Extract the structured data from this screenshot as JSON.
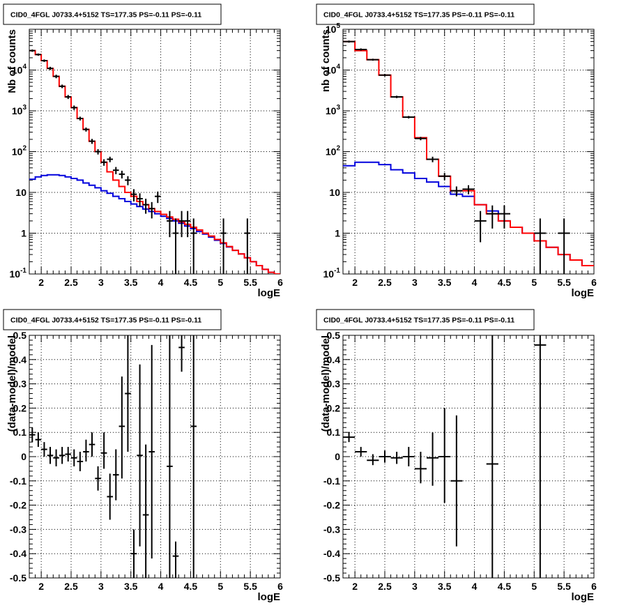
{
  "chart_data": [
    {
      "type": "line",
      "title": "CID0_4FGL J0733.4+5152 TS=177.35 PS=-0.11 PS=-0.11",
      "xlabel": "logE",
      "ylabel": "Nb of counts",
      "xlim": [
        1.8,
        6
      ],
      "ylim": [
        0.1,
        100000
      ],
      "yscale": "log",
      "grid": true,
      "x_ticks": [
        "2",
        "2.5",
        "3",
        "3.5",
        "4",
        "4.5",
        "5",
        "5.5",
        "6"
      ],
      "y_ticks": [
        "10^{-1}",
        "1",
        "10",
        "10^{2}",
        "10^{3}",
        "10^{4}"
      ],
      "series": [
        {
          "color": "#ff0000",
          "edges": [
            1.8,
            1.9,
            2.0,
            2.1,
            2.2,
            2.3,
            2.4,
            2.5,
            2.6,
            2.7,
            2.8,
            2.9,
            3.0,
            3.1,
            3.2,
            3.3,
            3.4,
            3.5,
            3.6,
            3.7,
            3.8,
            3.9,
            4.0,
            4.1,
            4.2,
            4.3,
            4.4,
            4.5,
            4.6,
            4.7,
            4.8,
            4.9,
            5.0,
            5.1,
            5.2,
            5.3,
            5.4,
            5.5,
            5.6,
            5.7,
            5.8,
            5.9,
            6.0
          ],
          "values": [
            30000,
            24000,
            17000,
            11000,
            7000,
            4000,
            2200,
            1200,
            650,
            350,
            180,
            100,
            55,
            32,
            20,
            14,
            10,
            8,
            6,
            5,
            4,
            3.4,
            2.9,
            2.5,
            2.2,
            1.9,
            1.65,
            1.4,
            1.2,
            1.0,
            0.85,
            0.7,
            0.58,
            0.47,
            0.38,
            0.31,
            0.25,
            0.2,
            0.16,
            0.13,
            0.11,
            0.1
          ]
        },
        {
          "color": "#0000dd",
          "edges": [
            1.8,
            1.9,
            2.0,
            2.1,
            2.2,
            2.3,
            2.4,
            2.5,
            2.6,
            2.7,
            2.8,
            2.9,
            3.0,
            3.1,
            3.2,
            3.3,
            3.4,
            3.5,
            3.6,
            3.7,
            3.8,
            3.9,
            4.0,
            4.1,
            4.2,
            4.3,
            4.4,
            4.5,
            4.6,
            4.7,
            4.8,
            4.9,
            5.0,
            5.1,
            5.2,
            5.3,
            5.4,
            5.5,
            5.6,
            5.7,
            5.8,
            5.9,
            6.0
          ],
          "values": [
            21,
            24,
            26,
            27,
            27,
            26,
            24,
            22,
            20,
            17,
            15,
            13,
            11,
            9.5,
            8,
            7,
            6,
            5.2,
            4.5,
            3.9,
            3.4,
            3.0,
            2.6,
            2.3,
            2.0,
            1.75,
            1.5,
            1.3,
            1.1,
            0.95,
            0.8,
            0.67,
            0.56,
            0.46,
            0.38,
            0.31,
            0.25,
            0.2,
            0.16,
            0.13,
            0.11,
            0.1
          ]
        }
      ],
      "points": [
        {
          "x": 1.85,
          "y": 30000,
          "lo": 28000,
          "hi": 32000,
          "dx": 0.05
        },
        {
          "x": 1.95,
          "y": 24000,
          "lo": 22500,
          "hi": 25500,
          "dx": 0.05
        },
        {
          "x": 2.05,
          "y": 17000,
          "lo": 15800,
          "hi": 18200,
          "dx": 0.05
        },
        {
          "x": 2.15,
          "y": 11000,
          "lo": 10000,
          "hi": 12000,
          "dx": 0.05
        },
        {
          "x": 2.25,
          "y": 7000,
          "lo": 6300,
          "hi": 7700,
          "dx": 0.05
        },
        {
          "x": 2.35,
          "y": 4000,
          "lo": 3600,
          "hi": 4400,
          "dx": 0.05
        },
        {
          "x": 2.45,
          "y": 2200,
          "lo": 1950,
          "hi": 2450,
          "dx": 0.05
        },
        {
          "x": 2.55,
          "y": 1200,
          "lo": 1050,
          "hi": 1350,
          "dx": 0.05
        },
        {
          "x": 2.65,
          "y": 650,
          "lo": 580,
          "hi": 720,
          "dx": 0.05
        },
        {
          "x": 2.75,
          "y": 350,
          "lo": 310,
          "hi": 390,
          "dx": 0.05
        },
        {
          "x": 2.85,
          "y": 180,
          "lo": 155,
          "hi": 205,
          "dx": 0.05
        },
        {
          "x": 2.95,
          "y": 100,
          "lo": 85,
          "hi": 115,
          "dx": 0.05
        },
        {
          "x": 3.05,
          "y": 55,
          "lo": 45,
          "hi": 65,
          "dx": 0.05
        },
        {
          "x": 3.15,
          "y": 65,
          "lo": 55,
          "hi": 75,
          "dx": 0.05
        },
        {
          "x": 3.25,
          "y": 35,
          "lo": 28,
          "hi": 42,
          "dx": 0.05
        },
        {
          "x": 3.35,
          "y": 28,
          "lo": 22,
          "hi": 34,
          "dx": 0.05
        },
        {
          "x": 3.45,
          "y": 20,
          "lo": 15,
          "hi": 25,
          "dx": 0.05
        },
        {
          "x": 3.55,
          "y": 9,
          "lo": 6,
          "hi": 12,
          "dx": 0.05
        },
        {
          "x": 3.65,
          "y": 7,
          "lo": 4.5,
          "hi": 9.5,
          "dx": 0.05
        },
        {
          "x": 3.75,
          "y": 5,
          "lo": 3,
          "hi": 7,
          "dx": 0.05
        },
        {
          "x": 3.85,
          "y": 4,
          "lo": 2.3,
          "hi": 5.8,
          "dx": 0.05
        },
        {
          "x": 3.95,
          "y": 8,
          "lo": 5.5,
          "hi": 10.5,
          "dx": 0.05
        },
        {
          "x": 4.15,
          "y": 2,
          "lo": 0.8,
          "hi": 3.5,
          "dx": 0.05
        },
        {
          "x": 4.25,
          "y": 1,
          "lo": 0.1,
          "hi": 2.3,
          "dx": 0.05
        },
        {
          "x": 4.35,
          "y": 2,
          "lo": 0.8,
          "hi": 3.5,
          "dx": 0.05
        },
        {
          "x": 4.45,
          "y": 2,
          "lo": 0.8,
          "hi": 3.5,
          "dx": 0.05
        },
        {
          "x": 4.55,
          "y": 1,
          "lo": 0.1,
          "hi": 2.3,
          "dx": 0.05
        },
        {
          "x": 5.05,
          "y": 1,
          "lo": 0.1,
          "hi": 2.3,
          "dx": 0.05
        },
        {
          "x": 5.45,
          "y": 1,
          "lo": 0.1,
          "hi": 2.3,
          "dx": 0.05
        }
      ]
    },
    {
      "type": "line",
      "title": "CID0_4FGL J0733.4+5152 TS=177.35 PS=-0.11 PS=-0.11",
      "xlabel": "logE",
      "ylabel": "nb of counts",
      "xlim": [
        1.8,
        6
      ],
      "ylim": [
        0.1,
        100000
      ],
      "yscale": "log",
      "grid": true,
      "x_ticks": [
        "2",
        "2.5",
        "3",
        "3.5",
        "4",
        "4.5",
        "5",
        "5.5",
        "6"
      ],
      "y_ticks": [
        "10^{-1}",
        "1",
        "10",
        "10^{2}",
        "10^{3}",
        "10^{4}",
        "10^{5}"
      ],
      "series": [
        {
          "color": "#ff0000",
          "edges": [
            1.8,
            2.0,
            2.2,
            2.4,
            2.6,
            2.8,
            3.0,
            3.2,
            3.4,
            3.6,
            3.8,
            4.0,
            4.2,
            4.4,
            4.6,
            4.8,
            5.0,
            5.2,
            5.4,
            5.6,
            5.8,
            6.0
          ],
          "values": [
            50000,
            30000,
            18000,
            7500,
            2200,
            700,
            220,
            65,
            25,
            11,
            11,
            5,
            3,
            2,
            1.4,
            1.0,
            0.65,
            0.45,
            0.3,
            0.22,
            0.16
          ]
        },
        {
          "color": "#0000dd",
          "edges": [
            1.8,
            2.0,
            2.2,
            2.4,
            2.6,
            2.8,
            3.0,
            3.2,
            3.4,
            3.6,
            3.8,
            4.0,
            4.2,
            4.4,
            4.6,
            4.8,
            5.0,
            5.2,
            5.4,
            5.6,
            5.8,
            6.0
          ],
          "values": [
            45,
            55,
            55,
            48,
            36,
            30,
            22,
            18,
            14,
            9,
            8,
            5,
            3.5,
            2,
            1.4,
            1.0,
            0.65,
            0.45,
            0.3,
            0.22,
            0.16
          ]
        }
      ],
      "points": [
        {
          "x": 1.9,
          "y": 50000,
          "lo": 47000,
          "hi": 53000,
          "dx": 0.1
        },
        {
          "x": 2.1,
          "y": 32000,
          "lo": 30000,
          "hi": 34000,
          "dx": 0.1
        },
        {
          "x": 2.3,
          "y": 18000,
          "lo": 17000,
          "hi": 19000,
          "dx": 0.1
        },
        {
          "x": 2.5,
          "y": 7500,
          "lo": 7000,
          "hi": 8000,
          "dx": 0.1
        },
        {
          "x": 2.7,
          "y": 2200,
          "lo": 2050,
          "hi": 2350,
          "dx": 0.1
        },
        {
          "x": 2.9,
          "y": 700,
          "lo": 650,
          "hi": 750,
          "dx": 0.1
        },
        {
          "x": 3.1,
          "y": 210,
          "lo": 190,
          "hi": 230,
          "dx": 0.1
        },
        {
          "x": 3.3,
          "y": 65,
          "lo": 55,
          "hi": 75,
          "dx": 0.1
        },
        {
          "x": 3.5,
          "y": 25,
          "lo": 20,
          "hi": 30,
          "dx": 0.1
        },
        {
          "x": 3.7,
          "y": 11,
          "lo": 8,
          "hi": 14,
          "dx": 0.1
        },
        {
          "x": 3.9,
          "y": 12,
          "lo": 9,
          "hi": 15,
          "dx": 0.1
        },
        {
          "x": 4.1,
          "y": 2,
          "lo": 0.6,
          "hi": 3.5,
          "dx": 0.1
        },
        {
          "x": 4.3,
          "y": 3,
          "lo": 1.3,
          "hi": 4.8,
          "dx": 0.1
        },
        {
          "x": 4.5,
          "y": 3,
          "lo": 1.3,
          "hi": 4.8,
          "dx": 0.1
        },
        {
          "x": 5.1,
          "y": 1,
          "lo": 0.1,
          "hi": 2.3,
          "dx": 0.1
        },
        {
          "x": 5.5,
          "y": 1,
          "lo": 0.1,
          "hi": 2.3,
          "dx": 0.1
        }
      ]
    },
    {
      "type": "scatter",
      "title": "CID0_4FGL J0733.4+5152 TS=177.35 PS=-0.11 PS=-0.11",
      "xlabel": "logE",
      "ylabel": "(data-model)/model",
      "xlim": [
        1.8,
        6
      ],
      "ylim": [
        -0.5,
        0.5
      ],
      "yscale": "linear",
      "grid": true,
      "x_ticks": [
        "2",
        "2.5",
        "3",
        "3.5",
        "4",
        "4.5",
        "5",
        "5.5",
        "6"
      ],
      "y_ticks": [
        "-0.5",
        "-0.4",
        "-0.3",
        "-0.2",
        "-0.1",
        "0",
        "0.1",
        "0.2",
        "0.3",
        "0.4",
        "0.5"
      ],
      "points": [
        {
          "x": 1.85,
          "y": 0.09,
          "lo": 0.06,
          "hi": 0.12,
          "dx": 0.05
        },
        {
          "x": 1.95,
          "y": 0.07,
          "lo": 0.04,
          "hi": 0.1,
          "dx": 0.05
        },
        {
          "x": 2.05,
          "y": 0.03,
          "lo": 0.0,
          "hi": 0.06,
          "dx": 0.05
        },
        {
          "x": 2.15,
          "y": 0.005,
          "lo": -0.03,
          "hi": 0.04,
          "dx": 0.05
        },
        {
          "x": 2.25,
          "y": -0.005,
          "lo": -0.04,
          "hi": 0.03,
          "dx": 0.05
        },
        {
          "x": 2.35,
          "y": 0.005,
          "lo": -0.03,
          "hi": 0.04,
          "dx": 0.05
        },
        {
          "x": 2.45,
          "y": 0.01,
          "lo": -0.02,
          "hi": 0.04,
          "dx": 0.05
        },
        {
          "x": 2.55,
          "y": -0.005,
          "lo": -0.04,
          "hi": 0.03,
          "dx": 0.05
        },
        {
          "x": 2.65,
          "y": -0.02,
          "lo": -0.06,
          "hi": 0.02,
          "dx": 0.05
        },
        {
          "x": 2.75,
          "y": 0.02,
          "lo": -0.02,
          "hi": 0.07,
          "dx": 0.05
        },
        {
          "x": 2.85,
          "y": 0.05,
          "lo": 0.0,
          "hi": 0.1,
          "dx": 0.05
        },
        {
          "x": 2.95,
          "y": -0.09,
          "lo": -0.14,
          "hi": -0.04,
          "dx": 0.05
        },
        {
          "x": 3.05,
          "y": 0.015,
          "lo": -0.05,
          "hi": 0.1,
          "dx": 0.05
        },
        {
          "x": 3.15,
          "y": -0.165,
          "lo": -0.26,
          "hi": -0.07,
          "dx": 0.05
        },
        {
          "x": 3.25,
          "y": -0.075,
          "lo": -0.18,
          "hi": 0.03,
          "dx": 0.05
        },
        {
          "x": 3.35,
          "y": 0.125,
          "lo": -0.09,
          "hi": 0.33,
          "dx": 0.05
        },
        {
          "x": 3.45,
          "y": 0.26,
          "lo": 0.02,
          "hi": 0.5,
          "dx": 0.05
        },
        {
          "x": 3.55,
          "y": -0.4,
          "lo": -0.5,
          "hi": -0.3,
          "dx": 0.05
        },
        {
          "x": 3.65,
          "y": 0.005,
          "lo": -0.37,
          "hi": 0.38,
          "dx": 0.05
        },
        {
          "x": 3.75,
          "y": -0.24,
          "lo": -0.5,
          "hi": 0.05,
          "dx": 0.05
        },
        {
          "x": 3.85,
          "y": 0.02,
          "lo": -0.42,
          "hi": 0.46,
          "dx": 0.05
        },
        {
          "x": 4.15,
          "y": -0.04,
          "lo": -0.5,
          "hi": 0.5,
          "dx": 0.05
        },
        {
          "x": 4.25,
          "y": -0.41,
          "lo": -0.5,
          "hi": -0.35,
          "dx": 0.05
        },
        {
          "x": 4.35,
          "y": 0.45,
          "lo": 0.35,
          "hi": 0.5,
          "dx": 0.05
        },
        {
          "x": 4.55,
          "y": 0.125,
          "lo": -0.5,
          "hi": 0.5,
          "dx": 0.05
        }
      ]
    },
    {
      "type": "scatter",
      "title": "CID0_4FGL J0733.4+5152 TS=177.35 PS=-0.11 PS=-0.11",
      "xlabel": "logE",
      "ylabel": "(data-model)/model",
      "xlim": [
        1.8,
        6
      ],
      "ylim": [
        -0.5,
        0.5
      ],
      "yscale": "linear",
      "grid": true,
      "x_ticks": [
        "2",
        "2.5",
        "3",
        "3.5",
        "4",
        "4.5",
        "5",
        "5.5",
        "6"
      ],
      "y_ticks": [
        "-0.5",
        "-0.4",
        "-0.3",
        "-0.2",
        "-0.1",
        "0",
        "0.1",
        "0.2",
        "0.3",
        "0.4",
        "0.5"
      ],
      "points": [
        {
          "x": 1.9,
          "y": 0.08,
          "lo": 0.06,
          "hi": 0.1,
          "dx": 0.1
        },
        {
          "x": 2.1,
          "y": 0.02,
          "lo": 0.0,
          "hi": 0.04,
          "dx": 0.1
        },
        {
          "x": 2.3,
          "y": -0.015,
          "lo": -0.035,
          "hi": 0.01,
          "dx": 0.1
        },
        {
          "x": 2.5,
          "y": 0.0,
          "lo": -0.025,
          "hi": 0.025,
          "dx": 0.1
        },
        {
          "x": 2.7,
          "y": -0.005,
          "lo": -0.03,
          "hi": 0.02,
          "dx": 0.1
        },
        {
          "x": 2.9,
          "y": 0.0,
          "lo": -0.04,
          "hi": 0.04,
          "dx": 0.1
        },
        {
          "x": 3.1,
          "y": -0.05,
          "lo": -0.11,
          "hi": 0.02,
          "dx": 0.1
        },
        {
          "x": 3.3,
          "y": -0.005,
          "lo": -0.12,
          "hi": 0.1,
          "dx": 0.1
        },
        {
          "x": 3.5,
          "y": 0.0,
          "lo": -0.19,
          "hi": 0.2,
          "dx": 0.1
        },
        {
          "x": 3.7,
          "y": -0.1,
          "lo": -0.37,
          "hi": 0.17,
          "dx": 0.1
        },
        {
          "x": 4.3,
          "y": -0.03,
          "lo": -0.5,
          "hi": 0.5,
          "dx": 0.1
        },
        {
          "x": 5.1,
          "y": 0.46,
          "lo": -0.5,
          "hi": 0.5,
          "dx": 0.1
        }
      ]
    }
  ]
}
